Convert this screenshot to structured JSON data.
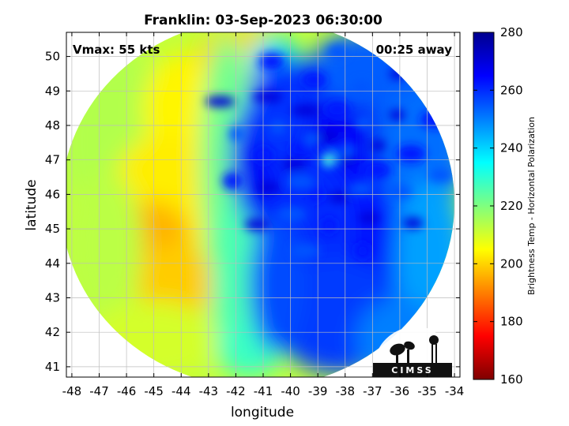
{
  "title": "Franklin: 03-Sep-2023 06:30:00",
  "annotations": {
    "vmax": "Vmax: 55 kts",
    "time_away": "00:25 away"
  },
  "logo_text": "CIMSS",
  "map": {
    "xlabel": "longitude",
    "ylabel": "latitude",
    "xlim": [
      -48.2,
      -33.8
    ],
    "ylim": [
      40.7,
      50.7
    ],
    "x_ticks": [
      -48,
      -47,
      -46,
      -45,
      -44,
      -43,
      -42,
      -41,
      -40,
      -39,
      -38,
      -37,
      -36,
      -35,
      -34
    ],
    "y_ticks": [
      41,
      42,
      43,
      44,
      45,
      46,
      47,
      48,
      49,
      50
    ],
    "grid": true,
    "storm_center": {
      "lon": -38.6,
      "lat": 47.0
    },
    "swath": {
      "center_lon": -41.2,
      "center_lat": 45.75,
      "radius_lon": 7.2,
      "radius_lat": 5.35
    }
  },
  "colorbar": {
    "label": "Brightness Temp - Horizontal Polarization",
    "min": 160,
    "max": 280,
    "ticks": [
      160,
      180,
      200,
      220,
      240,
      260,
      280
    ],
    "colormap": "jet",
    "colors": [
      "#7f0000",
      "#ff0000",
      "#ff7f00",
      "#ffff00",
      "#7fff7f",
      "#00ffff",
      "#007fff",
      "#0000ff",
      "#00008f"
    ]
  },
  "chart_data": {
    "type": "heatmap",
    "title": "Franklin: 03-Sep-2023 06:30:00",
    "xlabel": "longitude",
    "ylabel": "latitude",
    "x_range": [
      -48.2,
      -33.8
    ],
    "y_range": [
      40.7,
      50.7
    ],
    "value_range": [
      160,
      280
    ],
    "value_label": "Brightness Temp - Horizontal Polarization",
    "regions": [
      {
        "name": "western clear air",
        "lon_range": [
          -48,
          -42
        ],
        "approx_value": 208
      },
      {
        "name": "warm core near 45N",
        "lon": -45,
        "lat": 44.8,
        "approx_value": 198
      },
      {
        "name": "transition band",
        "lon": -42,
        "approx_value": 230
      },
      {
        "name": "storm cloud shield",
        "lon_range": [
          -41.5,
          -35
        ],
        "approx_value": 262
      },
      {
        "name": "eye",
        "lon": -38.6,
        "lat": 47.0,
        "approx_value": 235
      }
    ]
  }
}
